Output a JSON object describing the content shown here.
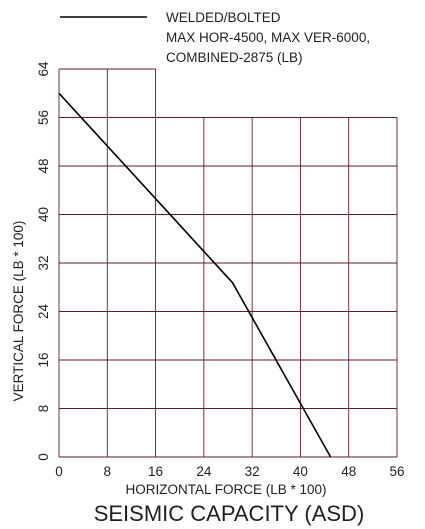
{
  "chart_data": {
    "type": "line",
    "title": "SEISMIC CAPACITY (ASD)",
    "xlabel": "HORIZONTAL FORCE (LB * 100)",
    "ylabel": "VERTICAL FORCE (LB * 100)",
    "xlim": [
      0,
      56
    ],
    "ylim": [
      0,
      64
    ],
    "x_ticks": [
      "0",
      "8",
      "16",
      "24",
      "32",
      "40",
      "48",
      "56"
    ],
    "y_ticks": [
      "0",
      "8",
      "16",
      "24",
      "32",
      "40",
      "48",
      "56",
      "64"
    ],
    "grid": true,
    "legend_position": "top",
    "legend": [
      "WELDED/BOLTED",
      "MAX HOR-4500, MAX VER-6000,",
      "COMBINED-2875 (LB)"
    ],
    "series": [
      {
        "name": "WELDED/BOLTED",
        "color": "#000000",
        "points": [
          {
            "x": 0,
            "y": 60
          },
          {
            "x": 28.75,
            "y": 28.75
          },
          {
            "x": 45,
            "y": 0
          }
        ]
      }
    ]
  }
}
